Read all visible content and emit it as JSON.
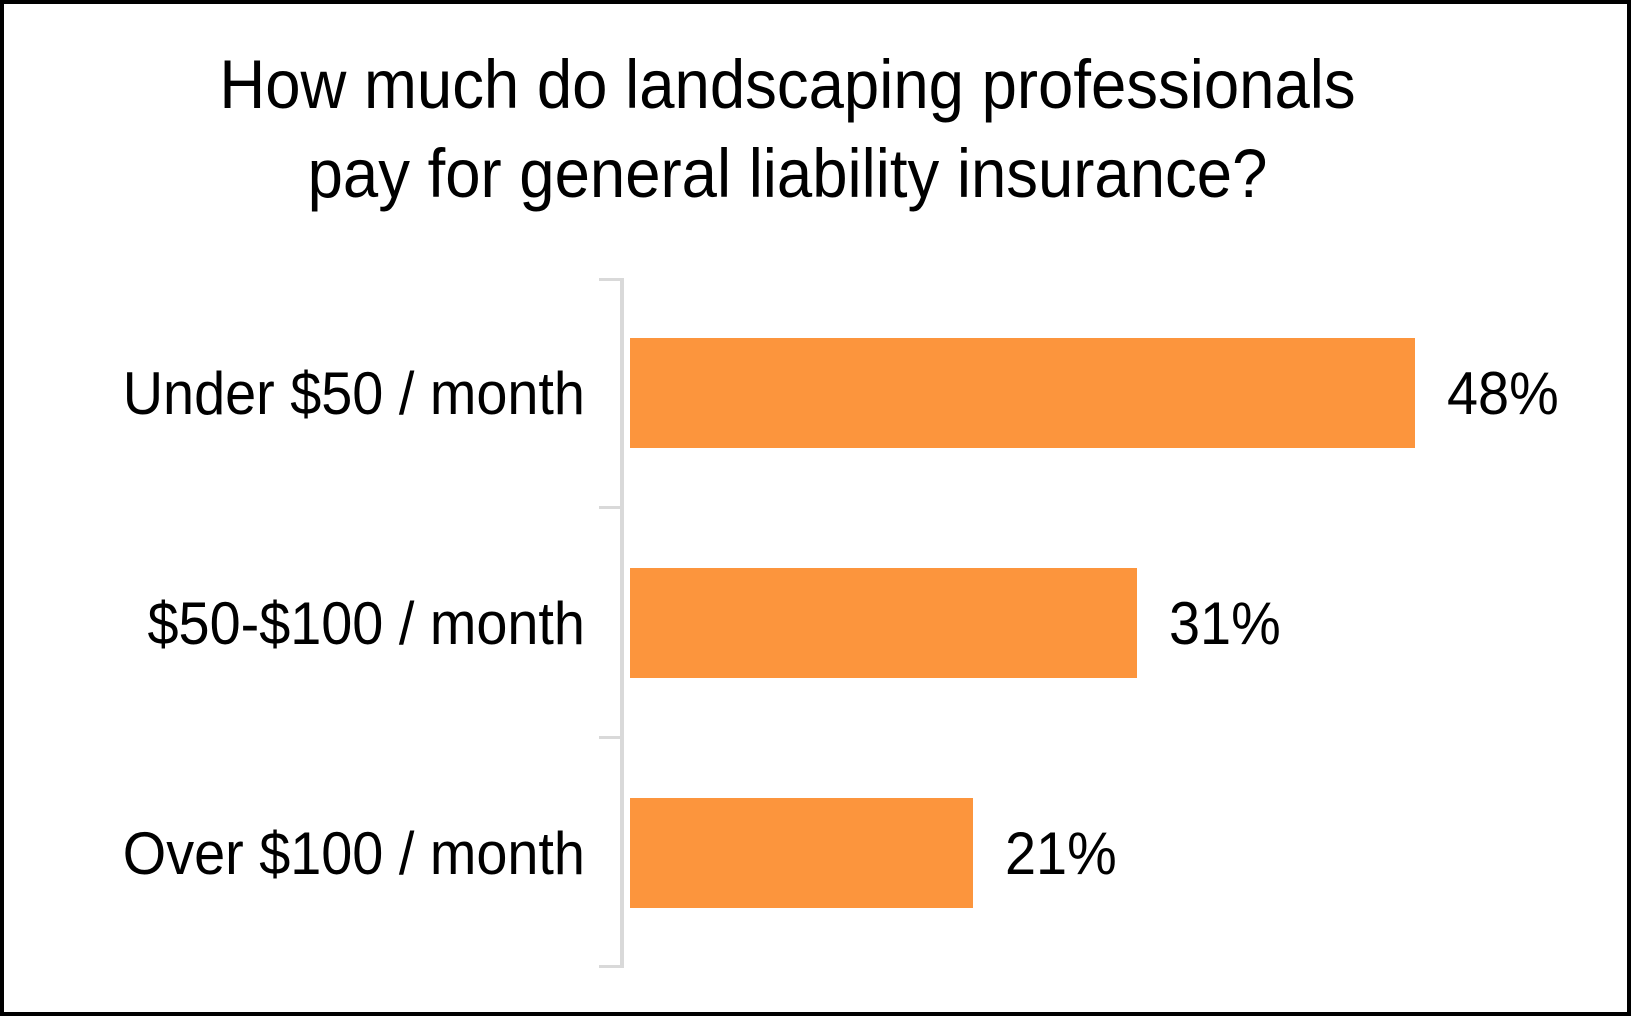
{
  "frame": {
    "border_color": "#000000",
    "background_color": "#FFFFFF"
  },
  "title_lines": [
    "How much do landscaping professionals",
    "pay for general liability insurance?"
  ],
  "chart_data": {
    "type": "bar",
    "orientation": "horizontal",
    "title": "How much do landscaping professionals pay for general liability insurance?",
    "categories": [
      "Under $50 / month",
      "$50-$100 / month",
      "Over $100 / month"
    ],
    "values": [
      48,
      31,
      21
    ],
    "data_labels": [
      "48%",
      "31%",
      "21%"
    ],
    "unit": "%",
    "xlim": [
      0,
      50
    ],
    "grid": false,
    "legend": false,
    "bar_color": "#FC953D",
    "axis_color": "#D9D9D9",
    "text_color": "#000000"
  }
}
